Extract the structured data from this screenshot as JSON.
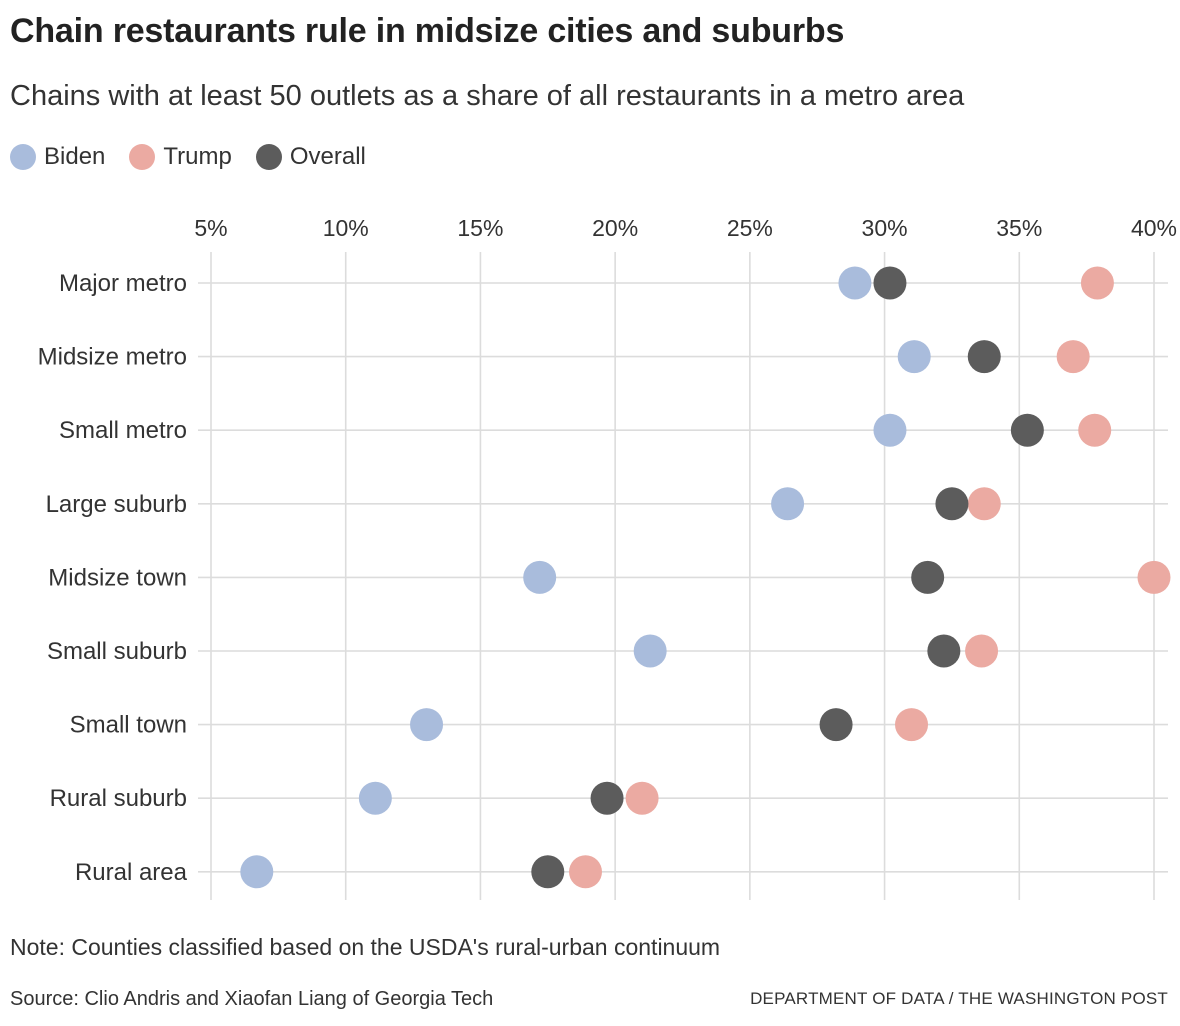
{
  "title": "Chain restaurants rule in midsize cities and suburbs",
  "subtitle": "Chains with at least 50 outlets as a share of all restaurants in a metro area",
  "legend": [
    {
      "label": "Biden",
      "color": "#a9bcdc"
    },
    {
      "label": "Trump",
      "color": "#ebaaa2"
    },
    {
      "label": "Overall",
      "color": "#5c5c5c"
    }
  ],
  "note": "Note: Counties classified based on the USDA's rural-urban continuum",
  "source": "Source: Clio Andris and Xiaofan Liang of Georgia Tech",
  "credit": "DEPARTMENT OF DATA / THE WASHINGTON POST",
  "chart_data": {
    "type": "scatter",
    "xlim": [
      5,
      40
    ],
    "xticks": [
      5,
      10,
      15,
      20,
      25,
      30,
      35,
      40
    ],
    "xtick_labels": [
      "5%",
      "10%",
      "15%",
      "20%",
      "25%",
      "30%",
      "35%",
      "40%"
    ],
    "grid": true,
    "categories": [
      "Major metro",
      "Midsize metro",
      "Small metro",
      "Large suburb",
      "Midsize town",
      "Small suburb",
      "Small town",
      "Rural suburb",
      "Rural area"
    ],
    "series": [
      {
        "name": "Biden",
        "color": "#a9bcdc",
        "values": [
          28.9,
          31.1,
          30.2,
          26.4,
          17.2,
          21.3,
          13.0,
          11.1,
          6.7
        ]
      },
      {
        "name": "Trump",
        "color": "#ebaaa2",
        "values": [
          37.9,
          37.0,
          37.8,
          33.7,
          40.0,
          33.6,
          31.0,
          21.0,
          18.9
        ]
      },
      {
        "name": "Overall",
        "color": "#5c5c5c",
        "values": [
          30.2,
          33.7,
          35.3,
          32.5,
          31.6,
          32.2,
          28.2,
          19.7,
          17.5
        ]
      }
    ]
  }
}
